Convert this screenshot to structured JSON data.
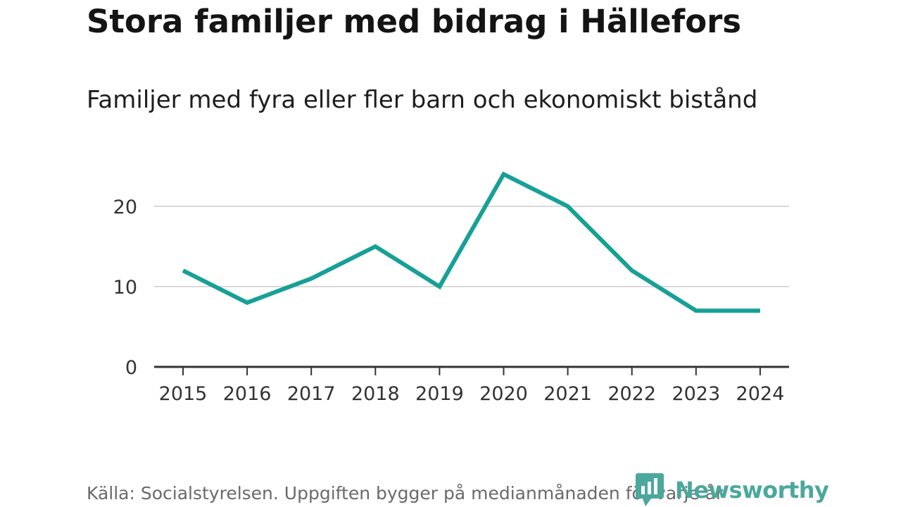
{
  "title": "Stora familjer med bidrag i Hällefors",
  "subtitle": "Familjer med fyra eller fler barn och ekonomiskt bistånd",
  "source": "Källa: Socialstyrelsen. Uppgiften bygger på medianmånaden för varje år",
  "brand": {
    "name": "Newsworthy",
    "color": "#4aa89c"
  },
  "chart_data": {
    "type": "line",
    "title": "Stora familjer med bidrag i Hällefors",
    "subtitle": "Familjer med fyra eller fler barn och ekonomiskt bistånd",
    "x": [
      "2015",
      "2016",
      "2017",
      "2018",
      "2019",
      "2020",
      "2021",
      "2022",
      "2023",
      "2024"
    ],
    "series": [
      {
        "values": [
          12,
          8,
          11,
          15,
          10,
          24,
          20,
          12,
          7,
          7
        ],
        "color": "#17a096"
      }
    ],
    "yticks": [
      0,
      10,
      20
    ],
    "ylim": [
      0,
      25
    ],
    "grid": true,
    "legend": "none"
  }
}
